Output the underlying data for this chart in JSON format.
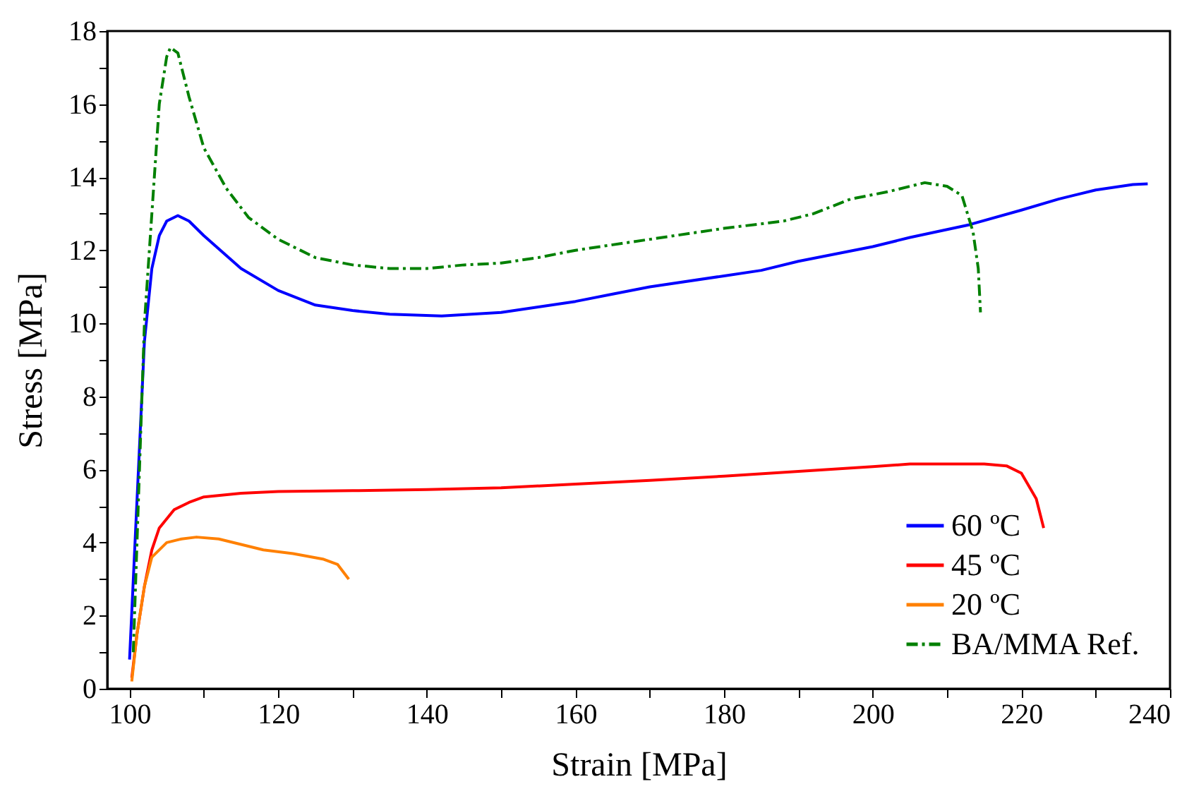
{
  "chart_data": {
    "type": "line",
    "xlabel": "Strain [MPa]",
    "ylabel": "Stress [MPa]",
    "xlim": [
      97,
      240
    ],
    "ylim": [
      0,
      18
    ],
    "xticks": [
      100,
      {
        "value": 110,
        "label": null
      },
      120,
      {
        "value": 130,
        "label": null
      },
      140,
      {
        "value": 150,
        "label": null
      },
      160,
      {
        "value": 170,
        "label": null
      },
      180,
      {
        "value": 190,
        "label": null
      },
      200,
      {
        "value": 210,
        "label": null
      },
      220,
      {
        "value": 230,
        "label": null
      },
      240
    ],
    "yticks": [
      0,
      {
        "value": 1,
        "label": null
      },
      2,
      {
        "value": 3,
        "label": null
      },
      4,
      {
        "value": 5,
        "label": null
      },
      6,
      {
        "value": 7,
        "label": null
      },
      8,
      {
        "value": 9,
        "label": null
      },
      10,
      {
        "value": 11,
        "label": null
      },
      12,
      {
        "value": 13,
        "label": null
      },
      14,
      {
        "value": 15,
        "label": null
      },
      16,
      {
        "value": 17,
        "label": null
      },
      18
    ],
    "grid": false,
    "legend": "bottom right",
    "marker": "none",
    "series": [
      {
        "name": "60 ºC",
        "color": "#0000ff",
        "line_style": "solid",
        "x": [
          100,
          102,
          103,
          104,
          105,
          106.5,
          108,
          110,
          115,
          120,
          125,
          130,
          135,
          142,
          150,
          155,
          160,
          165,
          170,
          180,
          185,
          190,
          200,
          205,
          213,
          220,
          225,
          230,
          235,
          237
        ],
        "values": [
          0.8,
          9.5,
          11.5,
          12.4,
          12.8,
          12.95,
          12.8,
          12.4,
          11.5,
          10.9,
          10.5,
          10.35,
          10.25,
          10.2,
          10.3,
          10.45,
          10.6,
          10.8,
          11.0,
          11.3,
          11.45,
          11.7,
          12.1,
          12.35,
          12.7,
          13.1,
          13.4,
          13.65,
          13.8,
          13.82
        ]
      },
      {
        "name": "45 ºC",
        "color": "#ff0000",
        "line_style": "solid",
        "x": [
          100.3,
          101,
          102,
          103,
          104,
          106,
          108,
          110,
          115,
          120,
          130,
          140,
          150,
          160,
          170,
          180,
          190,
          200,
          205,
          215,
          218,
          220,
          222,
          223
        ],
        "values": [
          0.3,
          1.5,
          2.8,
          3.8,
          4.4,
          4.9,
          5.1,
          5.25,
          5.35,
          5.4,
          5.42,
          5.45,
          5.5,
          5.6,
          5.7,
          5.82,
          5.95,
          6.08,
          6.15,
          6.15,
          6.1,
          5.9,
          5.2,
          4.4
        ]
      },
      {
        "name": "20 ºC",
        "color": "#ff8000",
        "line_style": "solid",
        "x": [
          100.3,
          101,
          102,
          103,
          105,
          107,
          109,
          112,
          115,
          118,
          122,
          126,
          128,
          129.5
        ],
        "values": [
          0.2,
          1.5,
          2.8,
          3.6,
          4.0,
          4.1,
          4.15,
          4.1,
          3.95,
          3.8,
          3.7,
          3.55,
          3.4,
          3.0
        ]
      },
      {
        "name": "BA/MMA Ref.",
        "color": "#008000",
        "line_style": "dashed",
        "x": [
          100.5,
          101,
          102,
          103,
          104,
          105,
          105.5,
          106.5,
          108,
          110,
          113,
          116,
          120,
          125,
          130,
          135,
          140,
          145,
          150,
          155,
          160,
          170,
          180,
          188,
          192,
          197,
          202,
          207,
          210,
          212,
          213.5,
          214.2,
          214.5
        ],
        "values": [
          1,
          4,
          10,
          13,
          16,
          17.3,
          17.55,
          17.4,
          16.2,
          14.8,
          13.7,
          12.9,
          12.3,
          11.8,
          11.6,
          11.5,
          11.5,
          11.6,
          11.65,
          11.8,
          12.0,
          12.3,
          12.6,
          12.8,
          13.0,
          13.4,
          13.6,
          13.85,
          13.75,
          13.5,
          12.5,
          11.5,
          10.3
        ]
      }
    ]
  }
}
